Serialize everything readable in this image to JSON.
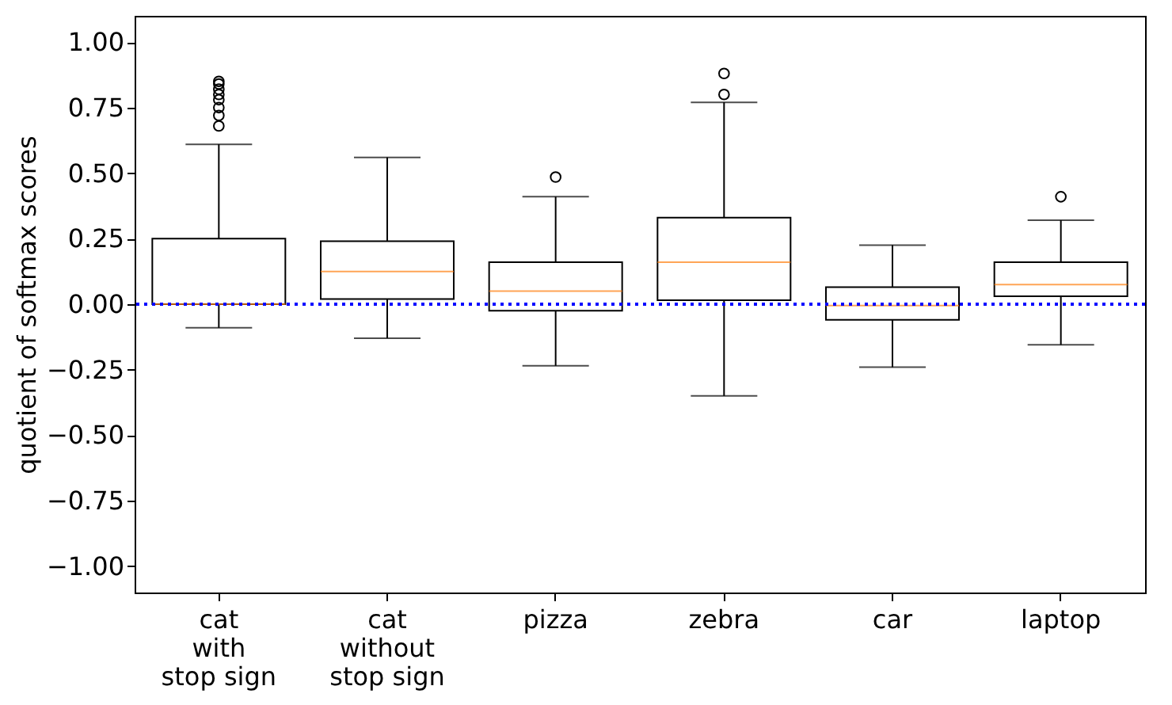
{
  "chart_data": {
    "type": "box",
    "ylabel": "quotient of softmax scores",
    "categories": [
      "cat\nwith\nstop sign",
      "cat\nwithout\nstop sign",
      "pizza",
      "zebra",
      "car",
      "laptop"
    ],
    "boxes": [
      {
        "low": -0.09,
        "q1": 0.0,
        "median": 0.0,
        "q3": 0.25,
        "high": 0.61,
        "outliers": [
          0.68,
          0.72,
          0.75,
          0.78,
          0.8,
          0.82,
          0.84,
          0.85
        ]
      },
      {
        "low": -0.13,
        "q1": 0.02,
        "median": 0.125,
        "q3": 0.24,
        "high": 0.56
      },
      {
        "low": -0.235,
        "q1": -0.025,
        "median": 0.05,
        "q3": 0.16,
        "high": 0.41,
        "outliers": [
          0.485
        ]
      },
      {
        "low": -0.35,
        "q1": 0.015,
        "median": 0.16,
        "q3": 0.33,
        "high": 0.77,
        "outliers": [
          0.8,
          0.88
        ]
      },
      {
        "low": -0.24,
        "q1": -0.06,
        "median": -0.005,
        "q3": 0.065,
        "high": 0.225
      },
      {
        "low": -0.155,
        "q1": 0.03,
        "median": 0.075,
        "q3": 0.16,
        "high": 0.32,
        "outliers": [
          0.41
        ]
      }
    ],
    "ylim": [
      -1.1,
      1.1
    ],
    "yticks": [
      {
        "value": -1,
        "label": "−1.00"
      },
      {
        "value": -0.75,
        "label": "−0.75"
      },
      {
        "value": -0.5,
        "label": "−0.50"
      },
      {
        "value": -0.25,
        "label": "−0.25"
      },
      {
        "value": 0,
        "label": "0.00"
      },
      {
        "value": 0.25,
        "label": "0.25"
      },
      {
        "value": 0.5,
        "label": "0.50"
      },
      {
        "value": 0.75,
        "label": "0.75"
      },
      {
        "value": 1,
        "label": "1.00"
      }
    ],
    "ref_lines": [
      {
        "axis": "y",
        "value": 0,
        "color": "#0000ff",
        "line_style": "dotted"
      }
    ]
  }
}
